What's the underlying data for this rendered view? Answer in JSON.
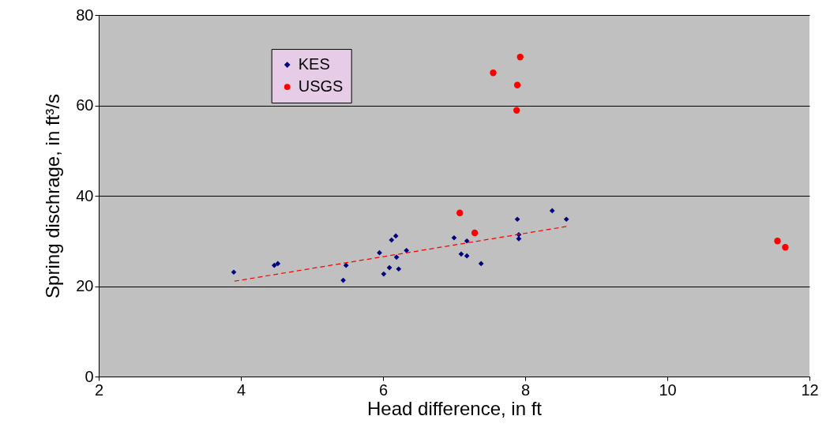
{
  "chart_data": {
    "type": "scatter",
    "xlabel": "Head difference, in ft",
    "ylabel": "Spring dischrage, in ft³/s",
    "xlim": [
      2,
      12
    ],
    "xticks": [
      2,
      4,
      6,
      8,
      10,
      12
    ],
    "ylim": [
      0,
      80
    ],
    "yticks": [
      0,
      20,
      40,
      60,
      80
    ],
    "grid": "y",
    "legend": "top left",
    "series": [
      {
        "name": "KES",
        "color": "#000080",
        "marker": "diamond",
        "x": [
          3.9,
          4.47,
          4.52,
          5.44,
          5.48,
          5.95,
          6.01,
          6.09,
          6.12,
          6.18,
          6.19,
          6.22,
          6.33,
          7.0,
          7.1,
          7.18,
          7.18,
          7.38,
          7.89,
          7.91,
          7.91,
          8.38,
          8.58
        ],
        "values": [
          23.1,
          24.6,
          25.0,
          21.3,
          24.6,
          27.4,
          22.7,
          24.1,
          30.2,
          31.1,
          26.4,
          23.8,
          27.9,
          30.7,
          27.1,
          26.7,
          30.0,
          25.0,
          34.8,
          30.5,
          31.4,
          36.7,
          34.8
        ]
      },
      {
        "name": "USGS",
        "color": "#ff0000",
        "marker": "circle",
        "x": [
          7.08,
          7.29,
          7.55,
          7.89,
          7.88,
          7.93,
          11.55,
          11.66
        ],
        "values": [
          36.2,
          31.8,
          67.2,
          64.5,
          58.9,
          70.7,
          30.0,
          28.6
        ]
      },
      {
        "type": "line",
        "color": "#ff0000",
        "line_style": "dashed",
        "marker": "none",
        "x": [
          3.91,
          8.58
        ],
        "values": [
          21.1,
          33.2
        ]
      }
    ]
  }
}
